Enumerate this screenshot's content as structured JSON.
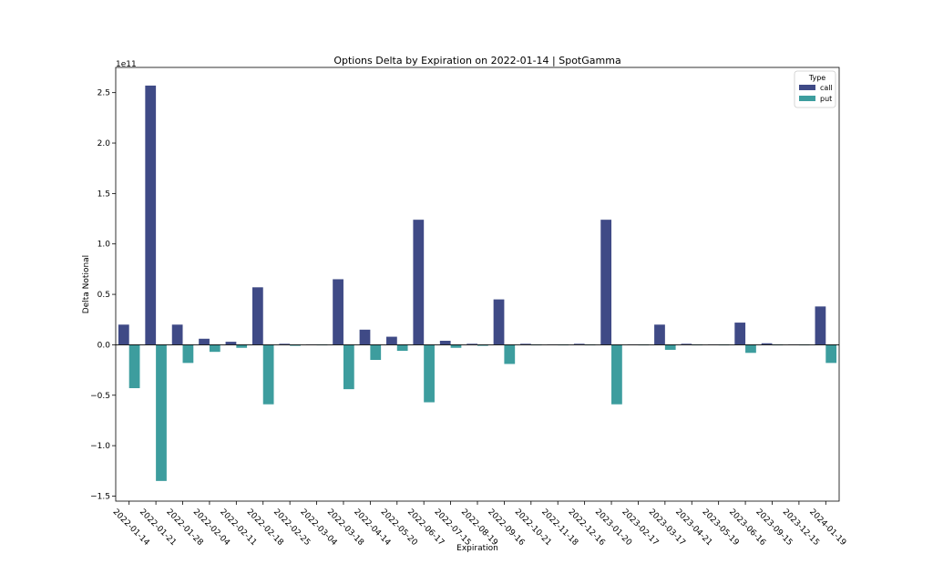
{
  "chart_data": {
    "type": "bar",
    "title": "Options Delta by Expiration on 2022-01-14 | SpotGamma",
    "xlabel": "Expiration",
    "ylabel": "Delta Notional",
    "offset_label": "1e11",
    "ylim": [
      -1.55,
      2.75
    ],
    "yticks": [
      -1.5,
      -1.0,
      -0.5,
      0.0,
      0.5,
      1.0,
      1.5,
      2.0,
      2.5
    ],
    "ytick_labels": [
      "−1.5",
      "−1.0",
      "−0.5",
      "0.0",
      "0.5",
      "1.0",
      "1.5",
      "2.0",
      "2.5"
    ],
    "legend": {
      "title": "Type",
      "position": "top-right"
    },
    "grid": false,
    "categories": [
      "2022-01-14",
      "2022-01-21",
      "2022-01-28",
      "2022-02-04",
      "2022-02-11",
      "2022-02-18",
      "2022-02-25",
      "2022-03-04",
      "2022-03-18",
      "2022-04-14",
      "2022-05-20",
      "2022-06-17",
      "2022-07-15",
      "2022-08-19",
      "2022-09-16",
      "2022-10-21",
      "2022-11-18",
      "2022-12-16",
      "2023-01-20",
      "2023-02-17",
      "2023-03-17",
      "2023-04-21",
      "2023-05-19",
      "2023-06-16",
      "2023-09-15",
      "2023-12-15",
      "2024-01-19"
    ],
    "series": [
      {
        "name": "call",
        "color": "#3f4a86",
        "values": [
          0.2,
          2.57,
          0.2,
          0.06,
          0.03,
          0.57,
          0.01,
          0.005,
          0.65,
          0.15,
          0.08,
          1.24,
          0.04,
          0.01,
          0.45,
          0.01,
          0.005,
          0.01,
          1.24,
          0.005,
          0.2,
          0.01,
          0.005,
          0.22,
          0.015,
          0.005,
          0.38
        ]
      },
      {
        "name": "put",
        "color": "#3d9d9e",
        "values": [
          -0.43,
          -1.35,
          -0.18,
          -0.07,
          -0.03,
          -0.59,
          -0.01,
          -0.005,
          -0.44,
          -0.15,
          -0.06,
          -0.57,
          -0.03,
          -0.01,
          -0.19,
          -0.005,
          -0.005,
          -0.005,
          -0.59,
          -0.005,
          -0.05,
          -0.005,
          -0.005,
          -0.08,
          -0.005,
          -0.005,
          -0.18
        ]
      }
    ]
  }
}
